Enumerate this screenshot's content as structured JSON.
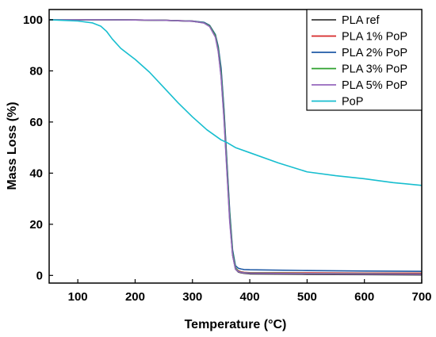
{
  "chart_data": {
    "type": "line",
    "title": "",
    "xlabel": "Temperature (°C)",
    "ylabel": "Mass Loss (%)",
    "xlim": [
      50,
      700
    ],
    "ylim": [
      -3,
      104
    ],
    "xticks": [
      100,
      200,
      300,
      400,
      500,
      600,
      700
    ],
    "yticks": [
      0,
      20,
      40,
      60,
      80,
      100
    ],
    "grid": false,
    "legend_position": "top-right",
    "series": [
      {
        "name": "PLA ref",
        "color": "#3a3a3a",
        "x": [
          50,
          100,
          150,
          200,
          250,
          300,
          320,
          330,
          340,
          345,
          350,
          355,
          360,
          365,
          370,
          375,
          380,
          385,
          390,
          400,
          500,
          600,
          700
        ],
        "y": [
          100,
          100,
          100,
          99.9,
          99.8,
          99.4,
          98.8,
          97.5,
          93.5,
          88,
          78,
          62,
          42,
          22,
          8,
          2.5,
          1.3,
          1.0,
          0.8,
          0.6,
          0.4,
          0.3,
          0.2
        ]
      },
      {
        "name": "PLA 1% PoP",
        "color": "#d62728",
        "x": [
          50,
          100,
          150,
          200,
          250,
          300,
          320,
          330,
          340,
          345,
          350,
          355,
          360,
          365,
          370,
          375,
          380,
          385,
          390,
          400,
          500,
          600,
          700
        ],
        "y": [
          100,
          100,
          100,
          99.9,
          99.8,
          99.5,
          98.9,
          97.7,
          94,
          89,
          80,
          64,
          44,
          24,
          9,
          3,
          1.8,
          1.4,
          1.2,
          1.1,
          1.0,
          0.9,
          0.9
        ]
      },
      {
        "name": "PLA 2% PoP",
        "color": "#1f5aa6",
        "x": [
          50,
          100,
          150,
          200,
          250,
          300,
          320,
          330,
          340,
          345,
          350,
          355,
          360,
          365,
          370,
          375,
          380,
          385,
          390,
          400,
          500,
          600,
          700
        ],
        "y": [
          100,
          100,
          100,
          99.9,
          99.8,
          99.5,
          99.0,
          97.8,
          94.2,
          89.5,
          81,
          65,
          45,
          25,
          10,
          3.8,
          2.8,
          2.5,
          2.3,
          2.2,
          1.9,
          1.7,
          1.6
        ]
      },
      {
        "name": "PLA 3% PoP",
        "color": "#2ca02c",
        "x": [
          50,
          100,
          150,
          200,
          250,
          300,
          320,
          330,
          340,
          345,
          350,
          355,
          360,
          365,
          370,
          375,
          380,
          385,
          390,
          400,
          500,
          600,
          700
        ],
        "y": [
          100,
          100,
          100,
          99.9,
          99.8,
          99.4,
          98.8,
          97.6,
          93.8,
          88.5,
          79,
          63,
          43,
          23,
          9,
          3,
          1.6,
          1.3,
          1.1,
          1.0,
          0.8,
          0.7,
          0.6
        ]
      },
      {
        "name": "PLA 5% PoP",
        "color": "#9467bd",
        "x": [
          50,
          100,
          150,
          200,
          250,
          300,
          320,
          330,
          340,
          345,
          350,
          355,
          360,
          365,
          370,
          375,
          380,
          385,
          390,
          400,
          500,
          600,
          700
        ],
        "y": [
          100,
          100,
          100,
          99.9,
          99.8,
          99.4,
          98.7,
          97.3,
          93.2,
          87.5,
          77.5,
          61,
          41,
          21,
          8,
          2.5,
          1.5,
          1.2,
          1.0,
          0.9,
          0.7,
          0.6,
          0.5
        ]
      },
      {
        "name": "PoP",
        "color": "#17becf",
        "x": [
          50,
          100,
          125,
          140,
          150,
          160,
          175,
          190,
          200,
          225,
          250,
          275,
          300,
          325,
          350,
          360,
          375,
          400,
          450,
          500,
          550,
          600,
          650,
          700
        ],
        "y": [
          100,
          99.5,
          98.8,
          97.5,
          95.5,
          92.5,
          88.8,
          86.2,
          84.5,
          79.5,
          73.5,
          67.5,
          62,
          57,
          53,
          52,
          50,
          48,
          44,
          40.5,
          39,
          37.8,
          36.3,
          35.2
        ]
      }
    ]
  }
}
